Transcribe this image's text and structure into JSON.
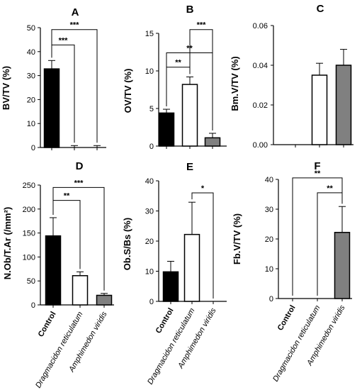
{
  "colors": {
    "control": "#000000",
    "dragmacidon": "#ffffff",
    "amphimedon": "#808080",
    "line": "#000000"
  },
  "categories": [
    {
      "label": "Control",
      "style": "bold"
    },
    {
      "label": "Dragmacidon reticulatum",
      "style": "italic"
    },
    {
      "label": "Amphimedon viridis",
      "style": "italic"
    }
  ],
  "chart_data": [
    {
      "panel": "A",
      "type": "bar",
      "ylabel": "BV/TV (%)",
      "ylim": [
        0,
        50
      ],
      "ticks": [
        0,
        10,
        20,
        30,
        40,
        50
      ],
      "tick_labels": [
        "0",
        "10",
        "20",
        "30",
        "40",
        "50"
      ],
      "values": [
        32.8,
        0,
        0
      ],
      "errors": [
        3.5,
        0.8,
        0.8
      ],
      "sig": [
        {
          "from": 0,
          "to": 1,
          "label": "***",
          "y": 42.8
        },
        {
          "from": 0,
          "to": 2,
          "label": "***",
          "y": 49.2
        }
      ]
    },
    {
      "panel": "B",
      "type": "bar",
      "ylabel": "OV/TV (%)",
      "ylim": [
        0,
        15
      ],
      "ticks": [
        0,
        5,
        10,
        15
      ],
      "tick_labels": [
        "0",
        "5",
        "10",
        "15"
      ],
      "values": [
        4.4,
        8.2,
        1.1
      ],
      "errors": [
        0.5,
        1.0,
        0.6
      ],
      "sig": [
        {
          "from": 0,
          "to": 1,
          "label": "**",
          "y": 10.5
        },
        {
          "from": 0,
          "to": 2,
          "label": "**",
          "y": 12.4
        },
        {
          "from": 1,
          "to": 2,
          "label": "***",
          "y": 15.5
        }
      ]
    },
    {
      "panel": "C",
      "type": "bar",
      "ylabel": "Bm.V/TV (%)",
      "ylim": [
        0,
        0.06
      ],
      "ticks": [
        0,
        0.02,
        0.04,
        0.06
      ],
      "tick_labels": [
        "0.00",
        "0.02",
        "0.04",
        "0.06"
      ],
      "values": [
        0,
        0.035,
        0.04
      ],
      "errors": [
        0,
        0.006,
        0.008
      ],
      "sig": []
    },
    {
      "panel": "D",
      "type": "bar",
      "ylabel": "N.Ob/T.Ar (/mm²)",
      "ylim": [
        0,
        250
      ],
      "ticks": [
        0,
        50,
        100,
        150,
        200,
        250
      ],
      "tick_labels": [
        "0",
        "50",
        "100",
        "150",
        "200",
        "250"
      ],
      "values": [
        144,
        61,
        20
      ],
      "errors": [
        38,
        8,
        4
      ],
      "sig": [
        {
          "from": 0,
          "to": 1,
          "label": "**",
          "y": 218
        },
        {
          "from": 0,
          "to": 2,
          "label": "***",
          "y": 245
        }
      ]
    },
    {
      "panel": "E",
      "type": "bar",
      "ylabel": "Ob.S/Bs (%)",
      "ylim": [
        0,
        40
      ],
      "ticks": [
        0,
        10,
        20,
        30,
        40
      ],
      "tick_labels": [
        "0",
        "10",
        "20",
        "30",
        "40"
      ],
      "values": [
        9.8,
        22.2,
        0
      ],
      "errors": [
        3.5,
        10.7,
        0
      ],
      "sig": [
        {
          "from": 1,
          "to": 2,
          "label": "*",
          "y": 36
        }
      ]
    },
    {
      "panel": "F",
      "type": "bar",
      "ylabel": "Fb.V/TV (%)",
      "ylim": [
        0,
        40
      ],
      "ticks": [
        0,
        10,
        20,
        30,
        40
      ],
      "tick_labels": [
        "0",
        "10",
        "20",
        "30",
        "40"
      ],
      "values": [
        0,
        0,
        22.2
      ],
      "errors": [
        0,
        0,
        8.7
      ],
      "sig": [
        {
          "from": 1,
          "to": 2,
          "label": "**",
          "y": 35.5
        },
        {
          "from": 0,
          "to": 2,
          "label": "**",
          "y": 40.5
        }
      ]
    }
  ]
}
